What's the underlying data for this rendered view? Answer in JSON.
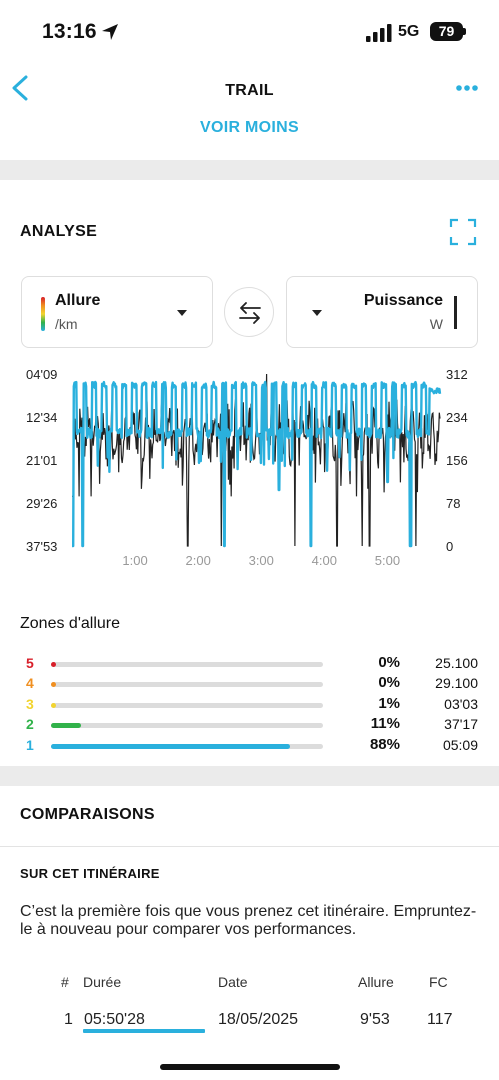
{
  "status_bar": {
    "time": "13:16",
    "network": "5G",
    "battery": "79"
  },
  "nav": {
    "title": "TRAIL",
    "voir_moins": "VOIR MOINS"
  },
  "analyse": {
    "title": "ANALYSE",
    "left_selector": {
      "name": "Allure",
      "unit": "/km"
    },
    "right_selector": {
      "name": "Puissance",
      "unit": "W"
    }
  },
  "chart_data": {
    "type": "line",
    "x_ticks": [
      "1:00",
      "2:00",
      "3:00",
      "4:00",
      "5:00"
    ],
    "x_range_minutes": [
      0,
      350
    ],
    "left_axis": {
      "label": "Allure",
      "ticks": [
        "04'09",
        "12'34",
        "21'01",
        "29'26",
        "37'53"
      ],
      "inverted": true
    },
    "right_axis": {
      "label": "Puissance",
      "ticks": [
        "312",
        "234",
        "156",
        "78",
        "0"
      ],
      "range": [
        0,
        312
      ]
    },
    "series": [
      {
        "name": "Allure",
        "color": "#2ab0dd",
        "axis": "left"
      },
      {
        "name": "Puissance",
        "color": "#222222",
        "axis": "right"
      }
    ]
  },
  "zones": {
    "title": "Zones d'allure",
    "items": [
      {
        "num": "5",
        "color": "#d81f2a",
        "fraction": 0.0,
        "pct": "0%",
        "time": "25.100"
      },
      {
        "num": "4",
        "color": "#f08f20",
        "fraction": 0.0,
        "pct": "0%",
        "time": "29.100"
      },
      {
        "num": "3",
        "color": "#f2d430",
        "fraction": 0.01,
        "pct": "1%",
        "time": "03'03"
      },
      {
        "num": "2",
        "color": "#31b24a",
        "fraction": 0.11,
        "pct": "11%",
        "time": "37'17"
      },
      {
        "num": "1",
        "color": "#2ab0dd",
        "fraction": 0.88,
        "pct": "88%",
        "time": "05:09"
      }
    ]
  },
  "comparaisons": {
    "title": "COMPARAISONS",
    "subtitle": "SUR CET ITINÉRAIRE",
    "text": "C’est la première fois que vous prenez cet itinéraire. Empruntez-le à nouveau pour comparer vos performances.",
    "table": {
      "headers": {
        "num": "#",
        "duree": "Durée",
        "date": "Date",
        "allure": "Allure",
        "fc": "FC"
      },
      "row": {
        "num": "1",
        "duree": "05:50'28",
        "date": "18/05/2025",
        "allure": "9'53",
        "fc": "117"
      }
    }
  }
}
